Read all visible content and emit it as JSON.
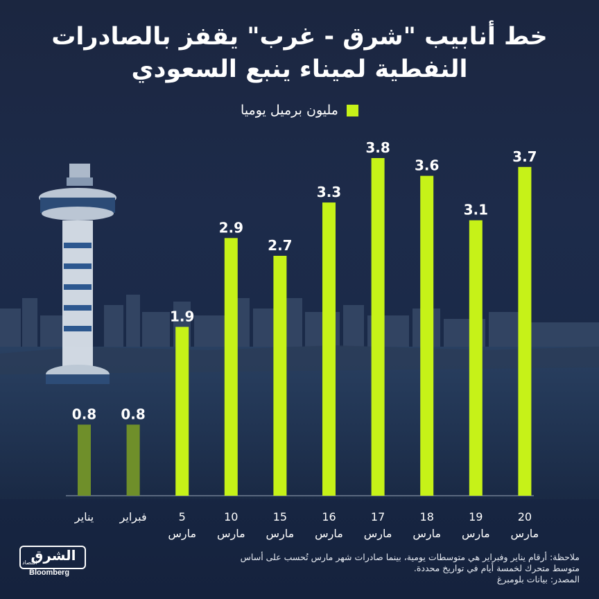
{
  "title_lines": [
    "خط أنابيب \"شرق - غرب\" يقفز بالصادرات",
    "النفطية لميناء ينبع السعودي"
  ],
  "legend_label": "مليون برميل يوميا",
  "colors": {
    "bar_bright": "#c6f218",
    "bar_dim": "#6f8f2a",
    "text": "#ffffff",
    "baseline": "#9aa6b8"
  },
  "chart_data": {
    "type": "bar",
    "categories": [
      {
        "line1": "يناير",
        "line2": ""
      },
      {
        "line1": "فبراير",
        "line2": ""
      },
      {
        "line1": "5",
        "line2": "مارس"
      },
      {
        "line1": "10",
        "line2": "مارس"
      },
      {
        "line1": "15",
        "line2": "مارس"
      },
      {
        "line1": "16",
        "line2": "مارس"
      },
      {
        "line1": "17",
        "line2": "مارس"
      },
      {
        "line1": "18",
        "line2": "مارس"
      },
      {
        "line1": "19",
        "line2": "مارس"
      },
      {
        "line1": "20",
        "line2": "مارس"
      }
    ],
    "values": [
      0.8,
      0.8,
      1.9,
      2.9,
      2.7,
      3.3,
      3.8,
      3.6,
      3.1,
      3.7
    ],
    "value_labels": [
      "0.8",
      "0.8",
      "1.9",
      "2.9",
      "2.7",
      "3.3",
      "3.8",
      "3.6",
      "3.1",
      "3.7"
    ],
    "dimmed": [
      true,
      true,
      false,
      false,
      false,
      false,
      false,
      false,
      false,
      false
    ],
    "legend": "مليون برميل يوميا",
    "legend_position": "top-center",
    "grid": false,
    "ylim": [
      0,
      3.8
    ]
  },
  "notes": [
    "ملاحظة: أرقام يناير وفبراير هي متوسطات يومية، بينما صادرات شهر مارس تُحسب على أساس",
    "متوسط متحرك لخمسة أيام في تواريخ محددة.",
    "المصدر: بيانات بلومبرغ"
  ],
  "logo": {
    "arabic": "الشرق",
    "arabic_sub": "اقتصاد",
    "english": "Bloomberg"
  }
}
